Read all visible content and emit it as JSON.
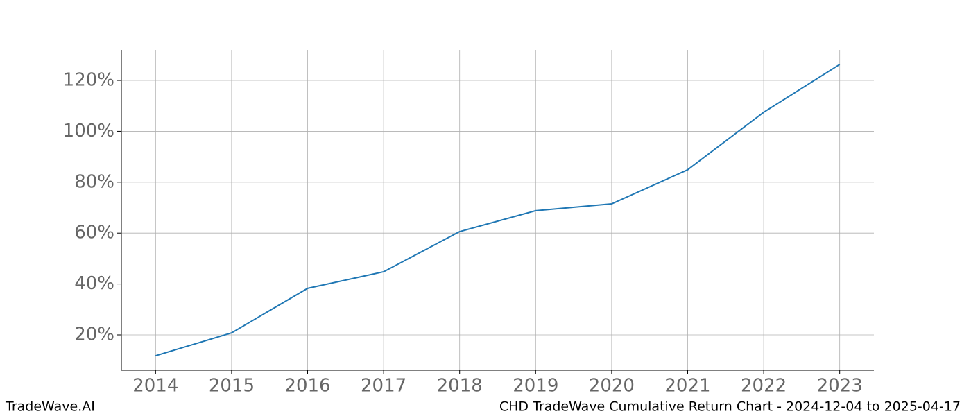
{
  "chart_data": {
    "type": "line",
    "title": "CHD TradeWave Cumulative Return Chart - 2024-12-04 to 2025-04-17",
    "watermark": "TradeWave.AI",
    "x": [
      2014,
      2015,
      2016,
      2017,
      2018,
      2019,
      2020,
      2021,
      2022,
      2023
    ],
    "series": [
      {
        "name": "CHD",
        "color": "#1f77b4",
        "values": [
          11.8,
          20.8,
          38.3,
          44.8,
          60.6,
          68.8,
          71.5,
          84.9,
          107.5,
          126.3
        ]
      }
    ],
    "xlim": [
      2013.55,
      2023.45
    ],
    "xticks": [
      2014,
      2015,
      2016,
      2017,
      2018,
      2019,
      2020,
      2021,
      2022,
      2023
    ],
    "ylim": [
      6.1,
      132
    ],
    "yticks": [
      {
        "value": 20,
        "label": "20%"
      },
      {
        "value": 40,
        "label": "40%"
      },
      {
        "value": 60,
        "label": "60%"
      },
      {
        "value": 80,
        "label": "80%"
      },
      {
        "value": 100,
        "label": "100%"
      },
      {
        "value": 120,
        "label": "120%"
      }
    ],
    "grid": true
  }
}
